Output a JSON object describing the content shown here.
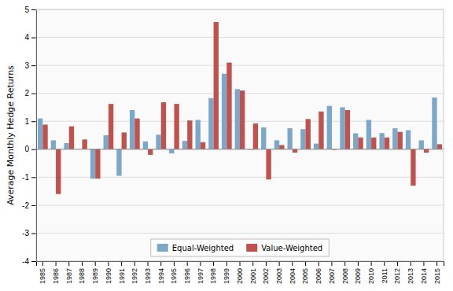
{
  "chart_data": {
    "type": "bar",
    "categories": [
      "1985",
      "1986",
      "1987",
      "1988",
      "1989",
      "1990",
      "1991",
      "1992",
      "1993",
      "1994",
      "1995",
      "1996",
      "1997",
      "1998",
      "1999",
      "2000",
      "2001",
      "2002",
      "2003",
      "2004",
      "2005",
      "2006",
      "2007",
      "2008",
      "2009",
      "2010",
      "2011",
      "2012",
      "2013",
      "2014",
      "2015"
    ],
    "series": [
      {
        "name": "Equal-Weighted",
        "color": "#7BA7C9",
        "values": [
          1.1,
          0.32,
          0.22,
          0.0,
          -1.05,
          0.5,
          -0.95,
          1.4,
          0.28,
          0.52,
          -0.15,
          0.3,
          1.05,
          1.83,
          2.7,
          2.15,
          -0.02,
          0.78,
          0.32,
          0.75,
          0.72,
          0.2,
          1.55,
          1.5,
          0.57,
          1.05,
          0.58,
          0.75,
          0.68,
          0.32,
          1.85
        ]
      },
      {
        "name": "Value-Weighted",
        "color": "#C0514D",
        "values": [
          0.88,
          -1.6,
          0.82,
          0.35,
          -1.05,
          1.62,
          0.6,
          1.1,
          -0.2,
          1.68,
          1.62,
          1.03,
          0.25,
          4.55,
          3.1,
          2.1,
          0.92,
          -1.08,
          0.15,
          -0.12,
          1.08,
          1.35,
          -0.02,
          1.4,
          0.42,
          0.42,
          0.42,
          0.62,
          -1.3,
          -0.12,
          0.18
        ]
      }
    ],
    "y_label": "Average Monthly Hedge Returns",
    "ylim": [
      -4,
      5
    ],
    "yticks": [
      -4,
      -3,
      -2,
      -1,
      0,
      1,
      2,
      3,
      4,
      5
    ],
    "grid": true,
    "legend": "bottom"
  }
}
